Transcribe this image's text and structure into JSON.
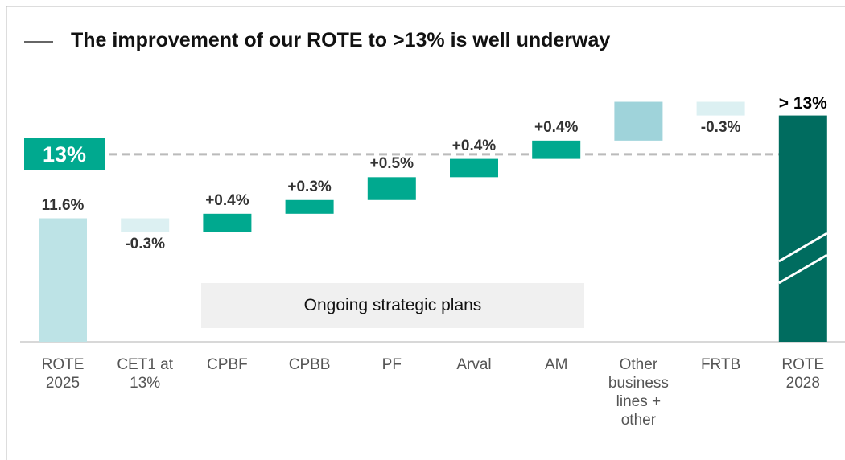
{
  "chart_data": {
    "type": "waterfall",
    "title": "The improvement of our ROTE to >13% is well underway",
    "categories": [
      "ROTE 2025",
      "CET1 at 13%",
      "CPBF",
      "CPBB",
      "PF",
      "Arval",
      "AM",
      "Other business lines + other",
      "FRTB",
      "ROTE 2028"
    ],
    "values": [
      11.6,
      -0.3,
      0.4,
      0.3,
      0.5,
      0.4,
      0.4,
      0.85,
      -0.3,
      13.85
    ],
    "value_labels": [
      "11.6%",
      "-0.3%",
      "+0.4%",
      "+0.3%",
      "+0.5%",
      "+0.4%",
      "+0.4%",
      null,
      "-0.3%",
      "> 13%"
    ],
    "colors": [
      "#bde3e6",
      "#dcf0f2",
      "#00a98f",
      "#00a98f",
      "#00a98f",
      "#00a98f",
      "#00a98f",
      "#9fd3da",
      "#dcf0f2",
      "#006c5f"
    ],
    "ylim": [
      8.9,
      14.3
    ],
    "reference_line": {
      "value": 13,
      "label": "13%"
    },
    "annotation": "Ongoing strategic plans"
  }
}
